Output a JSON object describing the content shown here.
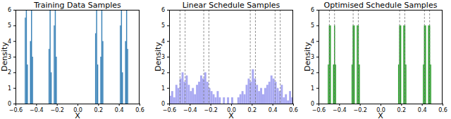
{
  "chart_data": [
    {
      "type": "histogram",
      "title": "Training Data Samples",
      "x_label": "X",
      "y_label": "Density",
      "color": "#3b83b8",
      "xlim": [
        -0.6,
        0.6
      ],
      "ylim": [
        0,
        6
      ],
      "xticks": [
        {
          "value": -0.6,
          "label": "−0.6"
        },
        {
          "value": -0.4,
          "label": "−0.4"
        },
        {
          "value": -0.2,
          "label": "−0.2"
        },
        {
          "value": 0,
          "label": "0.0"
        },
        0.2,
        0.4,
        0.6
      ],
      "yticks": [
        0,
        1,
        2,
        3,
        4,
        5,
        6
      ],
      "bins": [
        -0.6,
        -0.59,
        -0.58,
        -0.57,
        -0.56,
        -0.55,
        -0.54,
        -0.53,
        -0.52,
        -0.51,
        -0.5,
        -0.49,
        -0.48,
        -0.47,
        -0.46,
        -0.45,
        -0.44,
        -0.43,
        -0.42,
        -0.41,
        -0.4,
        -0.39,
        -0.38,
        -0.37,
        -0.36,
        -0.35,
        -0.34,
        -0.33,
        -0.32,
        -0.31,
        -0.3,
        -0.29,
        -0.28,
        -0.27,
        -0.26,
        -0.25,
        -0.24,
        -0.23,
        -0.22,
        -0.21,
        -0.2,
        -0.19,
        -0.18,
        -0.17,
        -0.16,
        -0.15,
        -0.14,
        -0.13,
        -0.12,
        -0.11,
        -0.1,
        -0.09,
        -0.08,
        -0.07,
        -0.06,
        -0.05,
        -0.04,
        -0.03,
        -0.02,
        -0.01,
        0,
        0.01,
        0.02,
        0.03,
        0.04,
        0.05,
        0.06,
        0.07,
        0.08,
        0.09,
        0.1,
        0.11,
        0.12,
        0.13,
        0.14,
        0.15,
        0.16,
        0.17,
        0.18,
        0.19,
        0.2,
        0.21,
        0.22,
        0.23,
        0.24,
        0.25,
        0.26,
        0.27,
        0.28,
        0.29,
        0.3,
        0.31,
        0.32,
        0.33,
        0.34,
        0.35,
        0.36,
        0.37,
        0.38,
        0.39,
        0.4,
        0.41,
        0.42,
        0.43,
        0.44,
        0.45,
        0.46,
        0.47,
        0.48,
        0.49,
        0.5,
        0.51,
        0.52,
        0.53,
        0.54,
        0.55,
        0.56,
        0.57,
        0.58,
        0.59,
        0.6
      ],
      "values": [
        0,
        0,
        0,
        0,
        0,
        0,
        0,
        0,
        0,
        5.5,
        6,
        2.5,
        0,
        0,
        4,
        6,
        3,
        0,
        0,
        0,
        0,
        0,
        0,
        0,
        0,
        0,
        0,
        0,
        0,
        0,
        0,
        0,
        3.5,
        6,
        2,
        0,
        0,
        5,
        6,
        3,
        0,
        0,
        0,
        0,
        0,
        0,
        0,
        0,
        0,
        0,
        0,
        0,
        0,
        0,
        0,
        0,
        0,
        0,
        0,
        0,
        0,
        0,
        0,
        0,
        0,
        0,
        0,
        0,
        0,
        0,
        0,
        0,
        0,
        0,
        0,
        0,
        0,
        4.5,
        6,
        2.5,
        0,
        0,
        3,
        6,
        4,
        0,
        0,
        0,
        0,
        0,
        0,
        0,
        0,
        0,
        0,
        0,
        0,
        0,
        0,
        0,
        0,
        5,
        6,
        2,
        0,
        0,
        4,
        6,
        3.5,
        0,
        0,
        0,
        0,
        0,
        0,
        0,
        0,
        0,
        0,
        0
      ]
    },
    {
      "type": "histogram",
      "title": "Linear Schedule Samples",
      "x_label": "X",
      "y_label": "Density",
      "color": "#a9a9f2",
      "xlim": [
        -0.6,
        0.6
      ],
      "ylim": [
        0,
        6
      ],
      "xticks": [
        {
          "value": -0.6,
          "label": "−0.6"
        },
        {
          "value": -0.4,
          "label": "−0.4"
        },
        {
          "value": -0.2,
          "label": "−0.2"
        },
        {
          "value": 0,
          "label": "0.0"
        },
        0.2,
        0.4,
        0.6
      ],
      "yticks": [
        0,
        1,
        2,
        3,
        4,
        5,
        6
      ],
      "bins": [
        -0.6,
        -0.58,
        -0.56,
        -0.54,
        -0.52,
        -0.5,
        -0.48,
        -0.46,
        -0.44,
        -0.42,
        -0.4,
        -0.38,
        -0.36,
        -0.34,
        -0.32,
        -0.3,
        -0.28,
        -0.26,
        -0.24,
        -0.22,
        -0.2,
        -0.18,
        -0.16,
        -0.14,
        -0.12,
        -0.1,
        -0.08,
        -0.06,
        -0.04,
        -0.02,
        0,
        0.02,
        0.04,
        0.06,
        0.08,
        0.1,
        0.12,
        0.14,
        0.16,
        0.18,
        0.2,
        0.22,
        0.24,
        0.26,
        0.28,
        0.3,
        0.32,
        0.34,
        0.36,
        0.38,
        0.4,
        0.42,
        0.44,
        0.46,
        0.48,
        0.5,
        0.52,
        0.54,
        0.56,
        0.58,
        0.6
      ],
      "values": [
        0.5,
        0.8,
        0.4,
        1.2,
        1.0,
        1.6,
        2.0,
        1.4,
        1.8,
        1.2,
        0.8,
        1.0,
        0.6,
        1.2,
        1.4,
        1.8,
        1.6,
        2.0,
        1.4,
        1.0,
        0.8,
        0.6,
        0.4,
        0.8,
        0.4,
        0,
        0.4,
        0,
        0.4,
        0,
        0.4,
        0,
        0,
        0.4,
        0.6,
        0.8,
        0.6,
        1.2,
        1.6,
        1.4,
        2.2,
        1.6,
        1.2,
        0.8,
        1.0,
        0.6,
        1.0,
        1.2,
        1.4,
        1.8,
        1.6,
        1.4,
        1.0,
        0.8,
        1.2,
        0.4,
        0.6,
        0.2,
        0.8,
        0.4
      ],
      "vlines": [
        -0.495,
        -0.445,
        -0.265,
        -0.215,
        0.185,
        0.235,
        0.425,
        0.475
      ]
    },
    {
      "type": "histogram",
      "title": "Optimised Schedule Samples",
      "x_label": "X",
      "y_label": "Density",
      "color": "#2ca02c",
      "xlim": [
        -0.6,
        0.6
      ],
      "ylim": [
        0,
        6
      ],
      "xticks": [
        {
          "value": -0.6,
          "label": "−0.6"
        },
        {
          "value": -0.4,
          "label": "−0.4"
        },
        {
          "value": -0.2,
          "label": "−0.2"
        },
        {
          "value": 0,
          "label": "0.0"
        },
        0.2,
        0.4,
        0.6
      ],
      "yticks": [
        0,
        1,
        2,
        3,
        4,
        5,
        6
      ],
      "bins": [
        -0.6,
        -0.59,
        -0.58,
        -0.57,
        -0.56,
        -0.55,
        -0.54,
        -0.53,
        -0.52,
        -0.51,
        -0.5,
        -0.49,
        -0.48,
        -0.47,
        -0.46,
        -0.45,
        -0.44,
        -0.43,
        -0.42,
        -0.41,
        -0.4,
        -0.39,
        -0.38,
        -0.37,
        -0.36,
        -0.35,
        -0.34,
        -0.33,
        -0.32,
        -0.31,
        -0.3,
        -0.29,
        -0.28,
        -0.27,
        -0.26,
        -0.25,
        -0.24,
        -0.23,
        -0.22,
        -0.21,
        -0.2,
        -0.19,
        -0.18,
        -0.17,
        -0.16,
        -0.15,
        -0.14,
        -0.13,
        -0.12,
        -0.11,
        -0.1,
        -0.09,
        -0.08,
        -0.07,
        -0.06,
        -0.05,
        -0.04,
        -0.03,
        -0.02,
        -0.01,
        0,
        0.01,
        0.02,
        0.03,
        0.04,
        0.05,
        0.06,
        0.07,
        0.08,
        0.09,
        0.1,
        0.11,
        0.12,
        0.13,
        0.14,
        0.15,
        0.16,
        0.17,
        0.18,
        0.19,
        0.2,
        0.21,
        0.22,
        0.23,
        0.24,
        0.25,
        0.26,
        0.27,
        0.28,
        0.29,
        0.3,
        0.31,
        0.32,
        0.33,
        0.34,
        0.35,
        0.36,
        0.37,
        0.38,
        0.39,
        0.4,
        0.41,
        0.42,
        0.43,
        0.44,
        0.45,
        0.46,
        0.47,
        0.48,
        0.49,
        0.5,
        0.51,
        0.52,
        0.53,
        0.54,
        0.55,
        0.56,
        0.57,
        0.58,
        0.59,
        0.6
      ],
      "values": [
        0,
        0,
        0,
        0,
        0,
        0,
        0,
        0,
        0,
        2.5,
        5,
        5,
        0,
        0,
        2.5,
        5,
        2.5,
        0,
        0,
        0,
        0,
        0,
        0,
        0,
        0,
        0,
        0,
        0,
        0,
        0,
        0,
        0,
        2.5,
        5,
        5,
        0,
        0,
        5,
        5,
        2.5,
        0,
        0,
        0,
        0,
        0,
        0,
        0,
        0,
        0,
        0,
        0,
        0,
        0,
        0,
        0,
        0,
        0,
        0,
        0,
        0,
        0,
        0,
        0,
        0,
        0,
        0,
        0,
        0,
        0,
        0,
        0,
        0,
        0,
        0,
        0,
        0,
        0,
        2.5,
        5,
        5,
        0,
        0,
        5,
        5,
        2.5,
        0,
        0,
        0,
        0,
        0,
        0,
        0,
        0,
        0,
        0,
        0,
        0,
        0,
        0,
        0,
        0,
        2.5,
        5,
        5,
        0,
        0,
        5,
        5,
        2.5,
        0,
        0,
        0,
        0,
        0,
        0,
        0,
        0,
        0,
        0,
        0
      ],
      "vlines": [
        -0.495,
        -0.445,
        -0.265,
        -0.215,
        0.185,
        0.235,
        0.425,
        0.475
      ]
    }
  ]
}
